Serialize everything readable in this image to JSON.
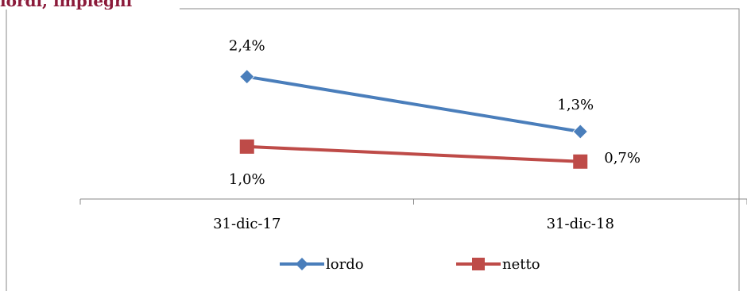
{
  "heading": "lordi, impieghi",
  "chart_data": {
    "type": "line",
    "categories": [
      "31-dic-17",
      "31-dic-18"
    ],
    "series": [
      {
        "name": "lordo",
        "values": [
          2.4,
          1.3
        ],
        "labels": [
          "2,4%",
          "1,3%"
        ],
        "color": "#4a7ebb",
        "marker": "diamond"
      },
      {
        "name": "netto",
        "values": [
          1.0,
          0.7
        ],
        "labels": [
          "1,0%",
          "0,7%"
        ],
        "color": "#be4b48",
        "marker": "square"
      }
    ],
    "ylim": [
      -0.05,
      3.3
    ],
    "legend": "bottom",
    "grid": false,
    "title": "",
    "xlabel": "",
    "ylabel": ""
  }
}
